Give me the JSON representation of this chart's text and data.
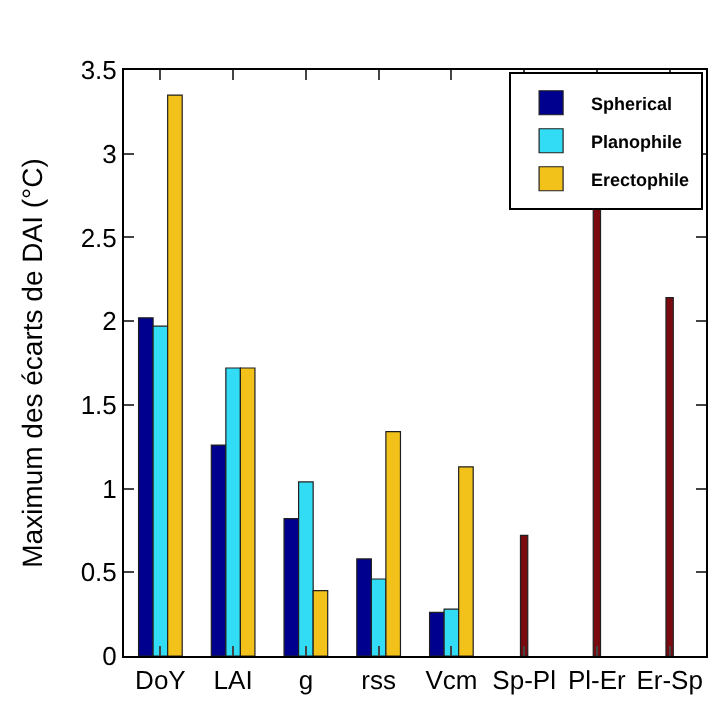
{
  "chart_data": {
    "type": "bar",
    "ylabel": "Maximum des écarts de DAI (°C)",
    "categories": [
      "DoY",
      "LAI",
      "g",
      "rss",
      "Vcm",
      "Sp-Pl",
      "Pl-Er",
      "Er-Sp"
    ],
    "series": [
      {
        "name": "Spherical",
        "color": "#00008f",
        "values": [
          2.02,
          1.26,
          0.82,
          0.58,
          0.26,
          null,
          null,
          null
        ]
      },
      {
        "name": "Planophile",
        "color": "#33dcf5",
        "values": [
          1.97,
          1.72,
          1.04,
          0.46,
          0.28,
          null,
          null,
          null
        ]
      },
      {
        "name": "Erectophile",
        "color": "#f2c21a",
        "values": [
          3.35,
          1.72,
          0.39,
          1.34,
          1.13,
          null,
          null,
          null
        ]
      },
      {
        "color": "#7a0a10",
        "values": [
          null,
          null,
          null,
          null,
          null,
          0.72,
          2.68,
          2.14
        ]
      }
    ],
    "ylim": [
      0,
      3.5
    ],
    "yticks": [
      0,
      0.5,
      1,
      1.5,
      2,
      2.5,
      3,
      3.5
    ],
    "legend": "top right"
  }
}
